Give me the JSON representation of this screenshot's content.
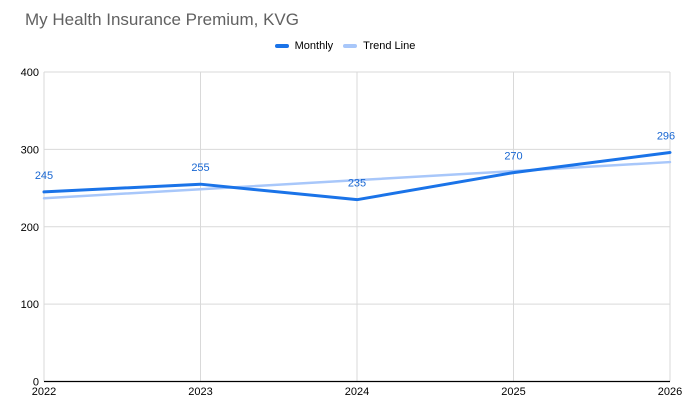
{
  "title": "My Health Insurance Premium, KVG",
  "chart_data": {
    "type": "line",
    "title": "My Health Insurance Premium, KVG",
    "xlabel": "",
    "ylabel": "",
    "categories": [
      "2022",
      "2023",
      "2024",
      "2025",
      "2026"
    ],
    "series": [
      {
        "name": "Monthly",
        "color": "#1a73e8",
        "values": [
          245,
          255,
          235,
          270,
          296
        ],
        "show_labels": true
      },
      {
        "name": "Trend Line",
        "color": "#a8c7fa",
        "values": [
          236.8,
          248.5,
          260.2,
          271.9,
          283.6
        ],
        "show_labels": false
      }
    ],
    "ylim": [
      0,
      400
    ],
    "yticks": [
      0,
      100,
      200,
      300,
      400
    ],
    "grid": true,
    "legend_position": "top",
    "label_color": "#1967d2",
    "grid_color": "#d9d9d9",
    "axis_color": "#000000"
  }
}
